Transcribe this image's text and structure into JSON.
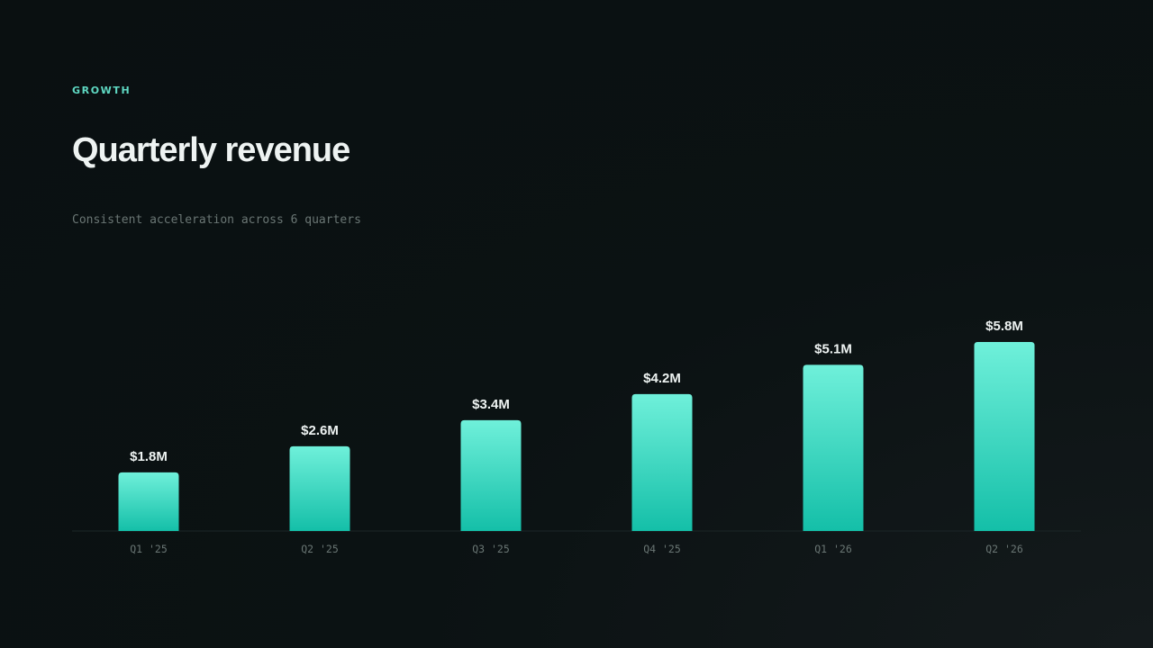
{
  "header": {
    "eyebrow": "GROWTH",
    "title": "Quarterly revenue",
    "subtitle": "Consistent acceleration across 6 quarters"
  },
  "colors": {
    "accent": "#5fd9c3",
    "bar_top": "#6ff0da",
    "bar_bottom": "#14bfa8",
    "baseline": "#1c2627",
    "text": "#eef3f2",
    "muted": "#6a7674"
  },
  "chart_data": {
    "type": "bar",
    "categories": [
      "Q1 '25",
      "Q2 '25",
      "Q3 '25",
      "Q4 '25",
      "Q1 '26",
      "Q2 '26"
    ],
    "values": [
      1.8,
      2.6,
      3.4,
      4.2,
      5.1,
      5.8
    ],
    "data_labels": [
      "$1.8M",
      "$2.6M",
      "$3.4M",
      "$4.2M",
      "$5.1M",
      "$5.8M"
    ],
    "ylim": [
      0,
      6.0
    ],
    "grid": false,
    "legend": "none"
  }
}
